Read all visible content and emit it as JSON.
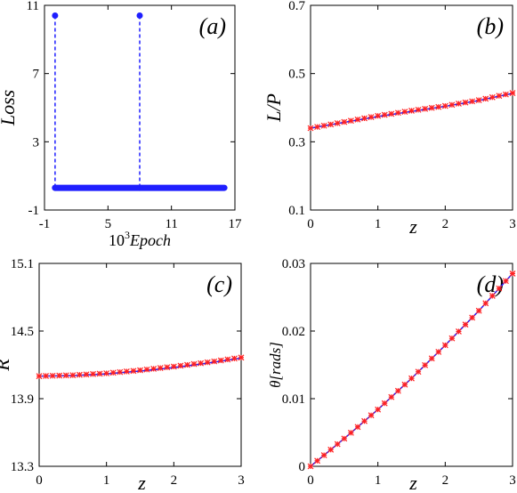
{
  "colors": {
    "blue": "#1f1fff",
    "red": "#ff2020",
    "axis": "#000000"
  },
  "chart_data": [
    {
      "panel": "(a)",
      "type": "scatter",
      "style": "stem",
      "xlabel_exp": "3",
      "xlabel_base": "10",
      "xlabel_word": "Epoch",
      "ylabel": "Loss",
      "xlim": [
        -1,
        17
      ],
      "ylim": [
        -1,
        11
      ],
      "xticks": [
        "-1",
        "5",
        "11",
        "17"
      ],
      "yticks": [
        "-1",
        "3",
        "7",
        "11"
      ],
      "stems": [
        {
          "x": 0,
          "y": 10.4
        },
        {
          "x": 8,
          "y": 10.4
        }
      ],
      "baseline_band": {
        "x_start": 0,
        "x_end": 16,
        "y": 0.3
      }
    },
    {
      "panel": "(b)",
      "type": "line",
      "xlabel": "z",
      "ylabel": "L/P",
      "xlim": [
        0,
        3
      ],
      "ylim": [
        0.1,
        0.7
      ],
      "xticks": [
        "0",
        "1",
        "2",
        "3"
      ],
      "yticks": [
        "0.1",
        "0.3",
        "0.5",
        "0.7"
      ],
      "series": [
        {
          "style": "line",
          "color": "blue",
          "x": [
            0,
            0.5,
            1,
            1.5,
            2,
            2.5,
            3
          ],
          "y": [
            0.34,
            0.357,
            0.374,
            0.389,
            0.404,
            0.421,
            0.442
          ]
        },
        {
          "style": "markers",
          "color": "red",
          "x": [
            0,
            0.5,
            1,
            1.5,
            2,
            2.5,
            3
          ],
          "y": [
            0.34,
            0.358,
            0.376,
            0.391,
            0.405,
            0.422,
            0.443
          ]
        }
      ]
    },
    {
      "panel": "(c)",
      "type": "line",
      "xlabel": "z",
      "ylabel": "R",
      "xlim": [
        0,
        3
      ],
      "ylim": [
        13.3,
        15.1
      ],
      "xticks": [
        "0",
        "1",
        "2",
        "3"
      ],
      "yticks": [
        "13.3",
        "13.9",
        "14.5",
        "15.1"
      ],
      "series": [
        {
          "style": "line",
          "color": "blue",
          "x": [
            0,
            0.5,
            1,
            1.5,
            2,
            2.5,
            3
          ],
          "y": [
            14.1,
            14.105,
            14.12,
            14.145,
            14.175,
            14.215,
            14.26
          ]
        },
        {
          "style": "markers",
          "color": "red",
          "x": [
            0,
            0.5,
            1,
            1.5,
            2,
            2.5,
            3
          ],
          "y": [
            14.1,
            14.108,
            14.125,
            14.152,
            14.185,
            14.222,
            14.265
          ]
        }
      ]
    },
    {
      "panel": "(d)",
      "type": "line",
      "xlabel": "z",
      "ylabel": "θ[rads]",
      "xlim": [
        0,
        3
      ],
      "ylim": [
        0,
        0.03
      ],
      "xticks": [
        "0",
        "1",
        "2",
        "3"
      ],
      "yticks": [
        "0",
        "0.01",
        "0.02",
        "0.03"
      ],
      "series": [
        {
          "style": "line",
          "color": "blue",
          "x": [
            0,
            0.5,
            1,
            1.5,
            2,
            2.5,
            3
          ],
          "y": [
            0,
            0.0041,
            0.0084,
            0.013,
            0.0179,
            0.023,
            0.0285
          ]
        },
        {
          "style": "markers",
          "color": "red",
          "x": [
            0,
            0.5,
            1,
            1.5,
            2,
            2.5,
            3
          ],
          "y": [
            0,
            0.0041,
            0.0084,
            0.013,
            0.0179,
            0.023,
            0.0285
          ]
        }
      ]
    }
  ]
}
